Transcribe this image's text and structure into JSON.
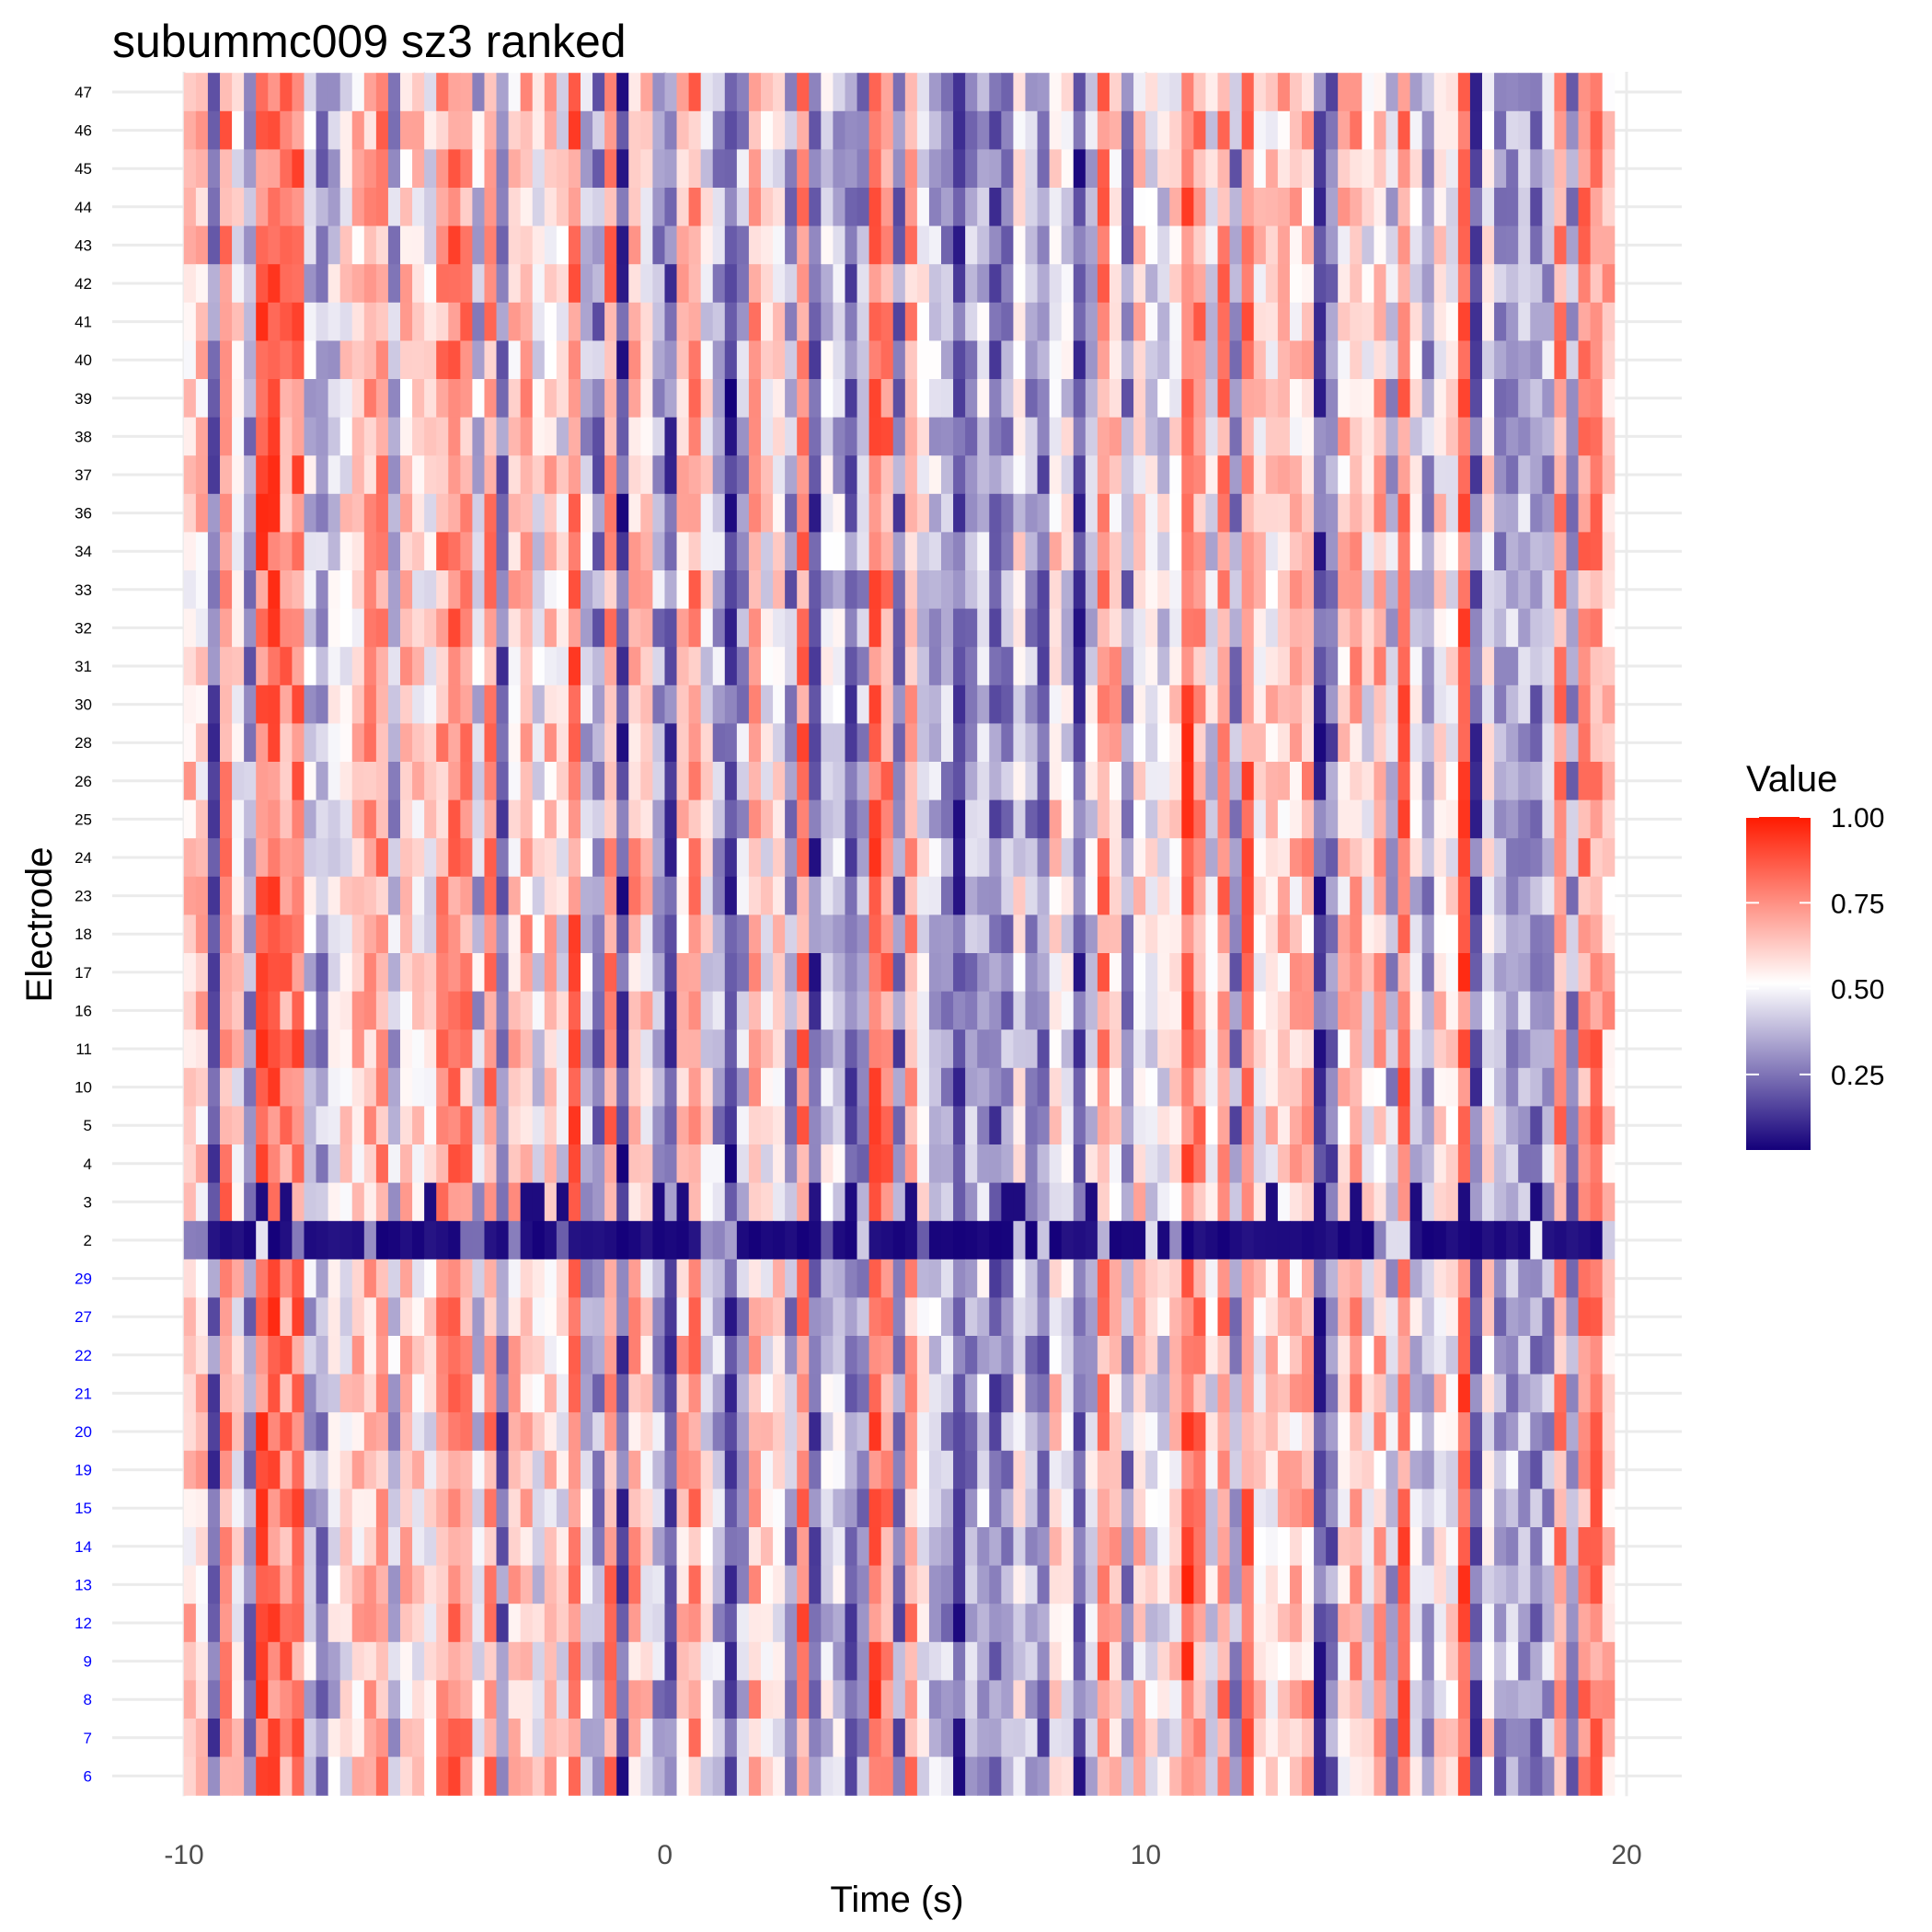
{
  "chart_data": {
    "type": "heatmap",
    "title": "subummc009 sz3 ranked",
    "xlabel": "Time (s)",
    "ylabel": "Electrode",
    "xlim": [
      -10,
      19.75
    ],
    "xticks": [
      -10,
      0,
      10,
      20
    ],
    "time_step": 0.25,
    "electrodes": [
      "47",
      "46",
      "45",
      "44",
      "43",
      "42",
      "41",
      "40",
      "39",
      "38",
      "37",
      "36",
      "34",
      "33",
      "32",
      "31",
      "30",
      "28",
      "26",
      "25",
      "24",
      "23",
      "18",
      "17",
      "16",
      "11",
      "10",
      "5",
      "4",
      "3",
      "2",
      "29",
      "27",
      "22",
      "21",
      "20",
      "19",
      "15",
      "14",
      "13",
      "12",
      "9",
      "8",
      "7",
      "6"
    ],
    "highlighted_electrodes": [
      "29",
      "27",
      "22",
      "21",
      "20",
      "19",
      "15",
      "14",
      "13",
      "12",
      "9",
      "8",
      "7",
      "6"
    ],
    "highlight_color": "#0000ff",
    "low_row": "2",
    "legend": {
      "title": "Value",
      "ticks": [
        "1.00",
        "0.75",
        "0.50",
        "0.25"
      ],
      "tick_values": [
        1.0,
        0.75,
        0.5,
        0.25
      ],
      "range": [
        0.03,
        1.0
      ],
      "colors": {
        "low": "#14007a",
        "mid": "#ffffff",
        "high": "#ff1a00"
      }
    },
    "grid": true
  }
}
